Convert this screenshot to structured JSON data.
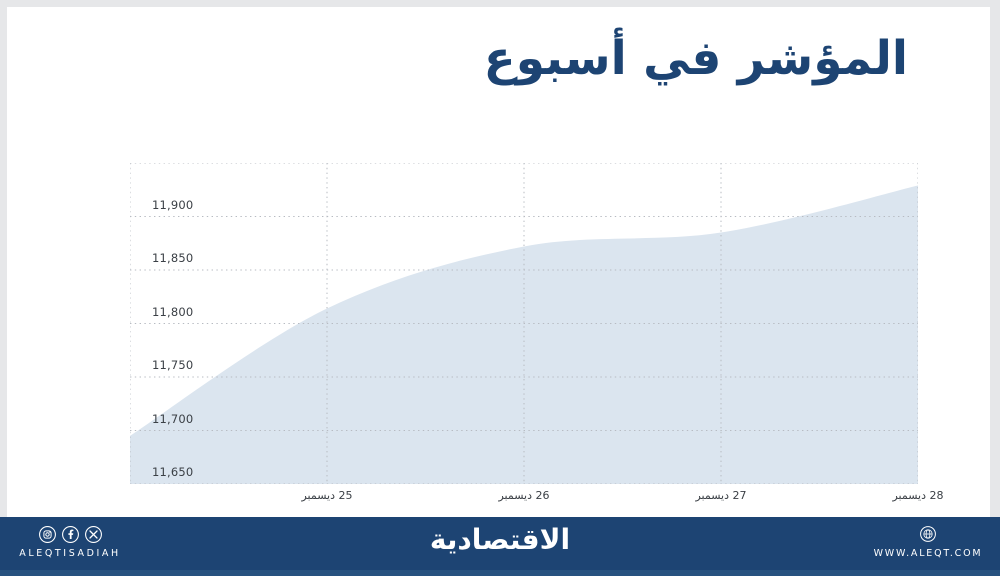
{
  "page": {
    "frame_color": "#e6e7e9",
    "background_color": "#ffffff",
    "accent_color": "#1d4473"
  },
  "header": {
    "title": "المؤشر في أسبوع"
  },
  "chart_data": {
    "type": "area",
    "title": "المؤشر في أسبوع",
    "x_tick_labels": [
      "25 ديسمبر",
      "26 ديسمبر",
      "27 ديسمبر",
      "28 ديسمبر"
    ],
    "series": [
      {
        "name": "المؤشر",
        "x": [
          "",
          "25 ديسمبر",
          "26 ديسمبر",
          "27 ديسمبر",
          "28 ديسمبر"
        ],
        "values": [
          11695,
          11814,
          11872,
          11885,
          11929
        ]
      }
    ],
    "y_ticks": [
      11900,
      11850,
      11800,
      11750,
      11700,
      11650
    ],
    "ylim": [
      11650,
      11950
    ],
    "xlabel": "",
    "ylabel": "",
    "grid": "dotted",
    "legend": "none",
    "fill_color": "#dbe5ef",
    "grid_color": "#b7bbc2",
    "tick_text_color": "#3b4046"
  },
  "footer": {
    "left": {
      "brand": "ALEQTISADIAH",
      "icons": [
        "instagram-icon",
        "facebook-icon",
        "x-icon"
      ]
    },
    "center": {
      "logo": "الاقتصادية"
    },
    "right": {
      "icon": "globe-icon",
      "url": "WWW.ALEQT.COM"
    }
  }
}
